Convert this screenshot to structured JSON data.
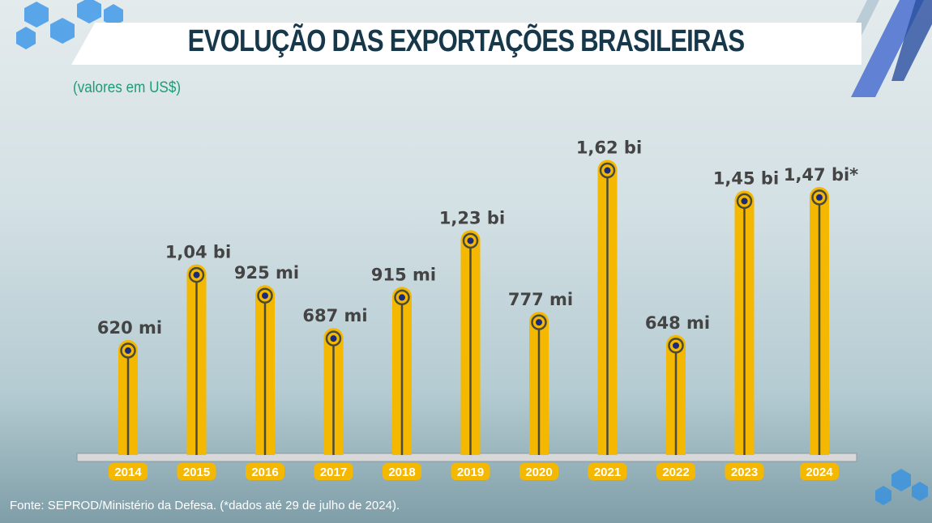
{
  "title": "EVOLUÇÃO DAS EXPORTAÇÕES BRASILEIRAS",
  "subtitle": "(valores em US$)",
  "source": "Fonte: SEPROD/Ministério da Defesa. (*dados até 29 de julho de 2024).",
  "colors": {
    "bar": "#f5b800",
    "line": "#4a4a3a",
    "dot": "#1c2a7a",
    "label": "#444444",
    "title": "#16384a",
    "subtitle": "#1f9a78"
  },
  "chart_data": {
    "type": "bar",
    "title": "EVOLUÇÃO DAS EXPORTAÇÕES BRASILEIRAS",
    "ylabel": "(valores em US$)",
    "unit": "US$ milhões",
    "categories": [
      "2014",
      "2015",
      "2016",
      "2017",
      "2018",
      "2019",
      "2020",
      "2021",
      "2022",
      "2023",
      "2024"
    ],
    "values": [
      620,
      1040,
      925,
      687,
      915,
      1230,
      777,
      1620,
      648,
      1450,
      1470
    ],
    "data_labels": [
      "620 mi",
      "1,04 bi",
      "925 mi",
      "687 mi",
      "915 mi",
      "1,23 bi",
      "777 mi",
      "1,62 bi",
      "648 mi",
      "1,45 bi",
      "1,47 bi*"
    ],
    "grid": false,
    "legend": "none"
  }
}
